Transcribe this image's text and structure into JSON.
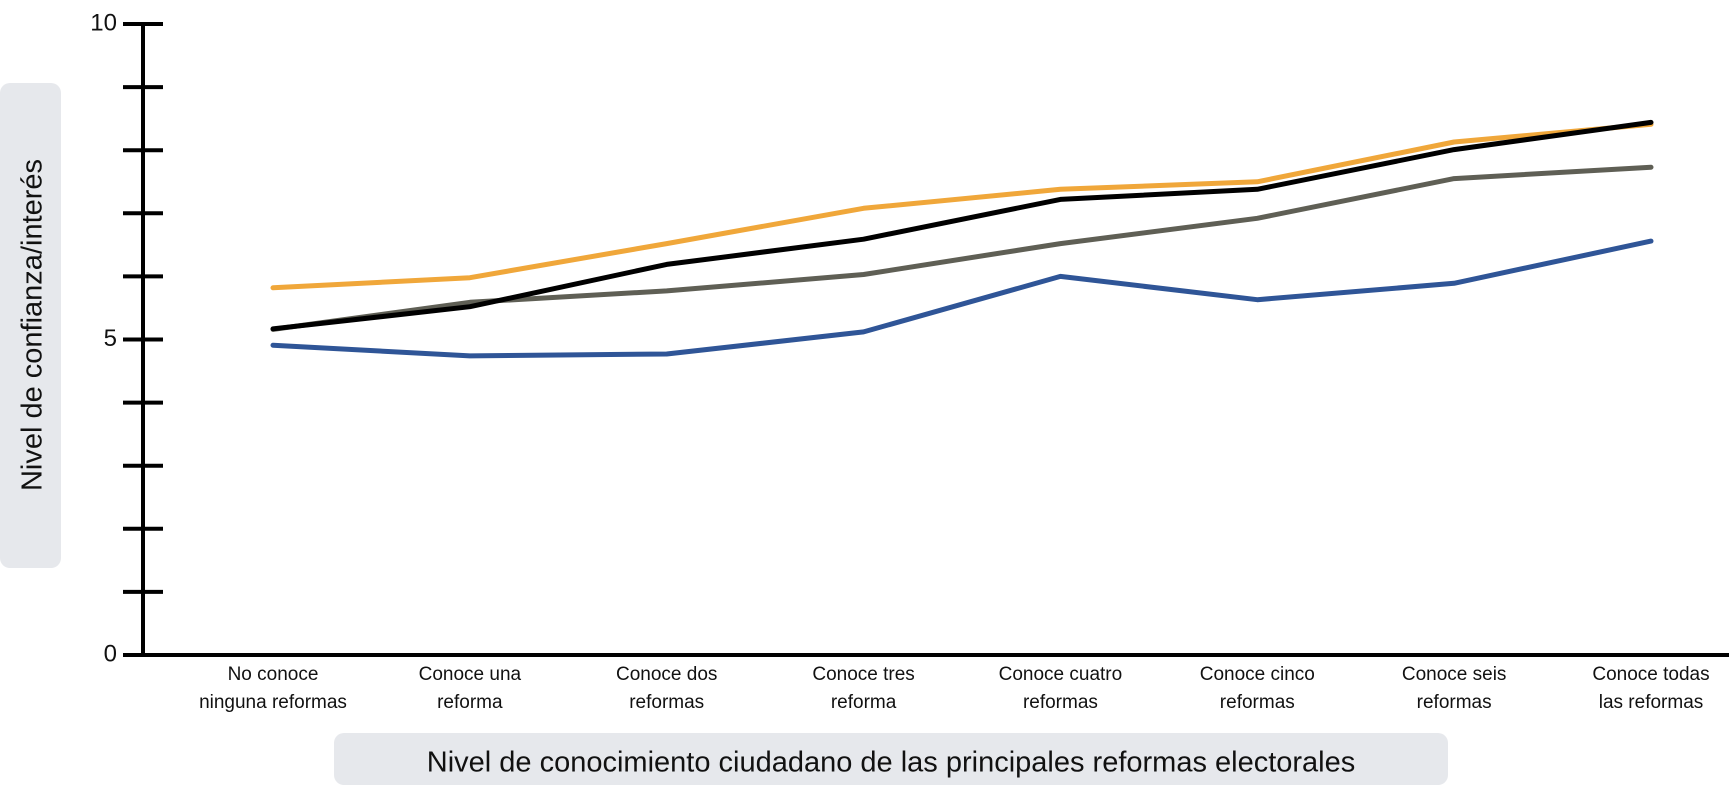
{
  "chart_data": {
    "type": "line",
    "y_label": "Nivel de confianza/interés",
    "x_label": "Nivel de conocimiento ciudadano de las principales reformas electorales",
    "categories": [
      "No conoce\nninguna reformas",
      "Conoce una\nreforma",
      "Conoce dos\nreformas",
      "Conoce tres\nreforma",
      "Conoce cuatro\nreformas",
      "Conoce cinco\nreformas",
      "Conoce seis\nreformas",
      "Conoce todas\nlas reformas"
    ],
    "series": [
      {
        "color": "#f0a73a",
        "values": [
          5.82,
          5.98,
          6.52,
          7.08,
          7.38,
          7.5,
          8.13,
          8.41
        ]
      },
      {
        "color": "#5f5f55",
        "values": [
          5.16,
          5.59,
          5.77,
          6.03,
          6.52,
          6.92,
          7.55,
          7.73
        ]
      },
      {
        "color": "#000000",
        "values": [
          5.17,
          5.52,
          6.19,
          6.59,
          7.22,
          7.38,
          8.01,
          8.44
        ]
      },
      {
        "color": "#2f5597",
        "values": [
          4.91,
          4.74,
          4.77,
          5.12,
          6.0,
          5.63,
          5.89,
          6.56
        ]
      }
    ],
    "ylim": [
      0,
      10
    ],
    "yticks": [
      0,
      5,
      10
    ],
    "yminor_ticks": [
      1,
      2,
      3,
      4,
      6,
      7,
      8,
      9
    ]
  }
}
